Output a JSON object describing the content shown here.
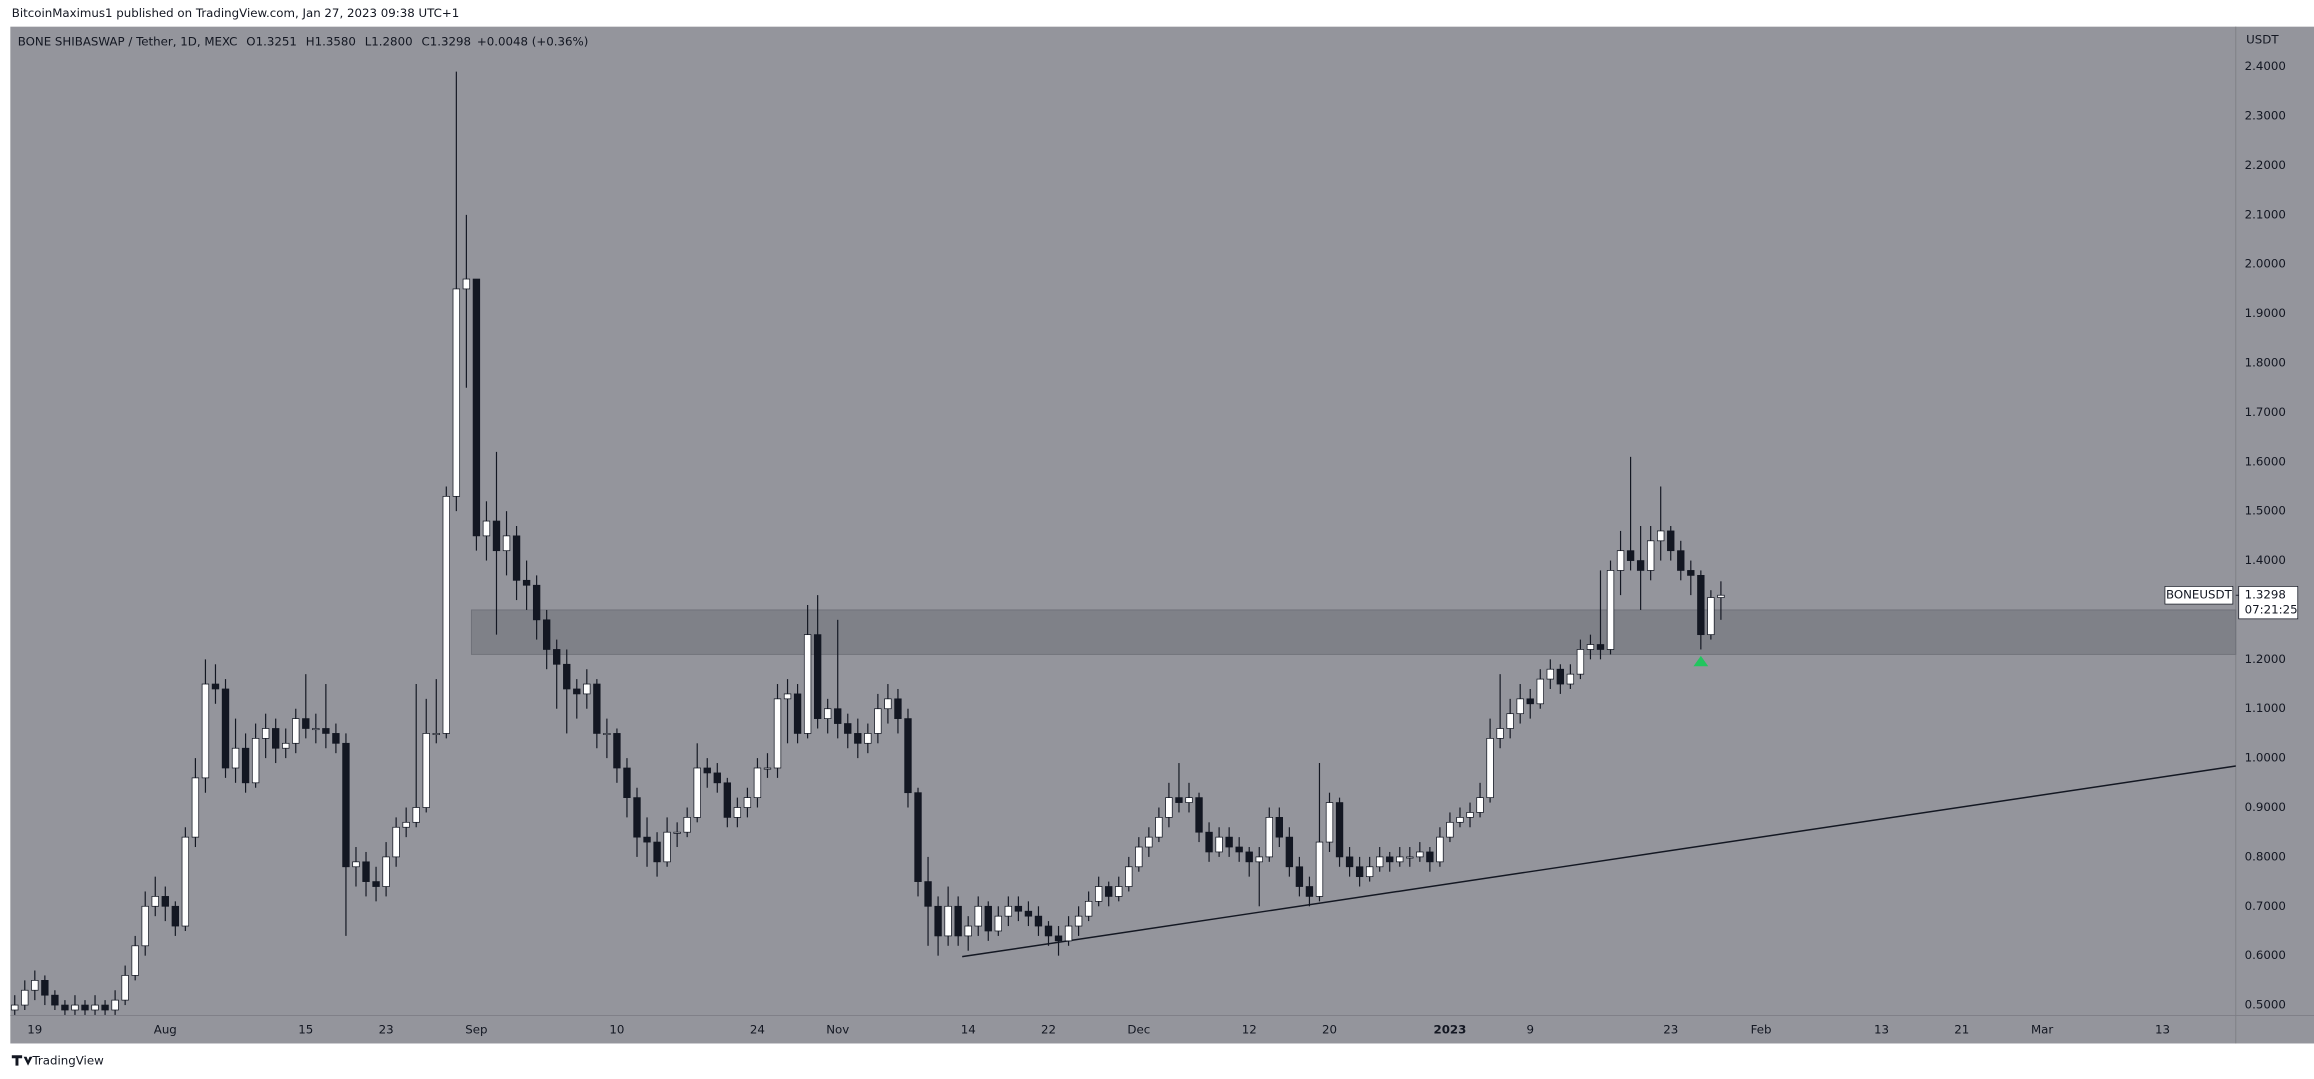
{
  "chart_data": {
    "type": "candlestick",
    "publisher": "BitcoinMaximus1 published on TradingView.com, Jan 27, 2023 09:38 UTC+1",
    "symbol": "BONE SHIBASWAP / Tether, 1D, MEXC",
    "ohlc_legend": [
      {
        "key": "O",
        "value": "1.3251"
      },
      {
        "key": "H",
        "value": "1.3580"
      },
      {
        "key": "L",
        "value": "1.2800"
      },
      {
        "key": "C",
        "value": "1.3298"
      }
    ],
    "change": "+0.0048 (+0.36%)",
    "currency": "USDT",
    "brand": "TradingView",
    "price_tag": {
      "symbol": "BONEUSDT",
      "price": "1.3298",
      "countdown": "07:21:25"
    },
    "up_color": "#ffffff",
    "down_color": "#131722",
    "ohlc": [
      [
        0.49,
        0.52,
        0.48,
        0.5
      ],
      [
        0.5,
        0.55,
        0.49,
        0.53
      ],
      [
        0.53,
        0.57,
        0.51,
        0.55
      ],
      [
        0.55,
        0.56,
        0.5,
        0.52
      ],
      [
        0.52,
        0.53,
        0.49,
        0.5
      ],
      [
        0.5,
        0.51,
        0.48,
        0.49
      ],
      [
        0.49,
        0.52,
        0.48,
        0.5
      ],
      [
        0.5,
        0.51,
        0.48,
        0.49
      ],
      [
        0.49,
        0.52,
        0.48,
        0.5
      ],
      [
        0.5,
        0.51,
        0.48,
        0.49
      ],
      [
        0.49,
        0.53,
        0.48,
        0.51
      ],
      [
        0.51,
        0.58,
        0.5,
        0.56
      ],
      [
        0.56,
        0.64,
        0.55,
        0.62
      ],
      [
        0.62,
        0.73,
        0.6,
        0.7
      ],
      [
        0.7,
        0.76,
        0.68,
        0.72
      ],
      [
        0.72,
        0.74,
        0.67,
        0.7
      ],
      [
        0.7,
        0.71,
        0.64,
        0.66
      ],
      [
        0.66,
        0.86,
        0.65,
        0.84
      ],
      [
        0.84,
        1.0,
        0.82,
        0.96
      ],
      [
        0.96,
        1.2,
        0.93,
        1.15
      ],
      [
        1.15,
        1.19,
        1.11,
        1.14
      ],
      [
        1.14,
        1.16,
        0.96,
        0.98
      ],
      [
        0.98,
        1.08,
        0.95,
        1.02
      ],
      [
        1.02,
        1.05,
        0.93,
        0.95
      ],
      [
        0.95,
        1.07,
        0.94,
        1.04
      ],
      [
        1.04,
        1.09,
        1.0,
        1.06
      ],
      [
        1.06,
        1.08,
        0.99,
        1.02
      ],
      [
        1.02,
        1.06,
        1.0,
        1.03
      ],
      [
        1.03,
        1.1,
        1.01,
        1.08
      ],
      [
        1.08,
        1.17,
        1.04,
        1.06
      ],
      [
        1.06,
        1.09,
        1.03,
        1.06
      ],
      [
        1.06,
        1.15,
        1.02,
        1.05
      ],
      [
        1.05,
        1.07,
        1.01,
        1.03
      ],
      [
        1.03,
        1.05,
        0.64,
        0.78
      ],
      [
        0.78,
        0.82,
        0.74,
        0.79
      ],
      [
        0.79,
        0.81,
        0.72,
        0.75
      ],
      [
        0.75,
        0.78,
        0.71,
        0.74
      ],
      [
        0.74,
        0.83,
        0.72,
        0.8
      ],
      [
        0.8,
        0.88,
        0.78,
        0.86
      ],
      [
        0.86,
        0.9,
        0.84,
        0.87
      ],
      [
        0.87,
        1.15,
        0.86,
        0.9
      ],
      [
        0.9,
        1.12,
        0.89,
        1.05
      ],
      [
        1.05,
        1.16,
        1.03,
        1.05
      ],
      [
        1.05,
        1.55,
        1.04,
        1.53
      ],
      [
        1.53,
        2.39,
        1.5,
        1.95
      ],
      [
        1.95,
        2.1,
        1.75,
        1.97
      ],
      [
        1.97,
        1.97,
        1.42,
        1.45
      ],
      [
        1.45,
        1.52,
        1.4,
        1.48
      ],
      [
        1.48,
        1.62,
        1.25,
        1.42
      ],
      [
        1.42,
        1.5,
        1.37,
        1.45
      ],
      [
        1.45,
        1.47,
        1.32,
        1.36
      ],
      [
        1.36,
        1.4,
        1.3,
        1.35
      ],
      [
        1.35,
        1.37,
        1.24,
        1.28
      ],
      [
        1.28,
        1.3,
        1.18,
        1.22
      ],
      [
        1.22,
        1.24,
        1.1,
        1.19
      ],
      [
        1.19,
        1.22,
        1.05,
        1.14
      ],
      [
        1.14,
        1.16,
        1.08,
        1.13
      ],
      [
        1.13,
        1.18,
        1.1,
        1.15
      ],
      [
        1.15,
        1.16,
        1.02,
        1.05
      ],
      [
        1.05,
        1.08,
        1.0,
        1.05
      ],
      [
        1.05,
        1.06,
        0.95,
        0.98
      ],
      [
        0.98,
        1.0,
        0.88,
        0.92
      ],
      [
        0.92,
        0.94,
        0.8,
        0.84
      ],
      [
        0.84,
        0.88,
        0.78,
        0.83
      ],
      [
        0.83,
        0.85,
        0.76,
        0.79
      ],
      [
        0.79,
        0.88,
        0.78,
        0.85
      ],
      [
        0.85,
        0.87,
        0.82,
        0.85
      ],
      [
        0.85,
        0.9,
        0.84,
        0.88
      ],
      [
        0.88,
        1.03,
        0.87,
        0.98
      ],
      [
        0.98,
        1.0,
        0.94,
        0.97
      ],
      [
        0.97,
        0.99,
        0.93,
        0.95
      ],
      [
        0.95,
        0.96,
        0.86,
        0.88
      ],
      [
        0.88,
        0.92,
        0.86,
        0.9
      ],
      [
        0.9,
        0.94,
        0.88,
        0.92
      ],
      [
        0.92,
        1.0,
        0.9,
        0.98
      ],
      [
        0.98,
        1.01,
        0.96,
        0.98
      ],
      [
        0.98,
        1.15,
        0.96,
        1.12
      ],
      [
        1.12,
        1.16,
        1.03,
        1.13
      ],
      [
        1.13,
        1.15,
        1.03,
        1.05
      ],
      [
        1.05,
        1.31,
        1.04,
        1.25
      ],
      [
        1.25,
        1.33,
        1.06,
        1.08
      ],
      [
        1.08,
        1.12,
        1.05,
        1.1
      ],
      [
        1.1,
        1.28,
        1.04,
        1.07
      ],
      [
        1.07,
        1.09,
        1.02,
        1.05
      ],
      [
        1.05,
        1.08,
        1.0,
        1.03
      ],
      [
        1.03,
        1.07,
        1.01,
        1.05
      ],
      [
        1.05,
        1.13,
        1.03,
        1.1
      ],
      [
        1.1,
        1.15,
        1.07,
        1.12
      ],
      [
        1.12,
        1.14,
        1.05,
        1.08
      ],
      [
        1.08,
        1.1,
        0.9,
        0.93
      ],
      [
        0.93,
        0.94,
        0.72,
        0.75
      ],
      [
        0.75,
        0.8,
        0.62,
        0.7
      ],
      [
        0.7,
        0.72,
        0.6,
        0.64
      ],
      [
        0.64,
        0.74,
        0.62,
        0.7
      ],
      [
        0.7,
        0.72,
        0.62,
        0.64
      ],
      [
        0.64,
        0.68,
        0.61,
        0.66
      ],
      [
        0.66,
        0.72,
        0.64,
        0.7
      ],
      [
        0.7,
        0.71,
        0.63,
        0.65
      ],
      [
        0.65,
        0.7,
        0.64,
        0.68
      ],
      [
        0.68,
        0.72,
        0.66,
        0.7
      ],
      [
        0.7,
        0.72,
        0.67,
        0.69
      ],
      [
        0.69,
        0.71,
        0.66,
        0.68
      ],
      [
        0.68,
        0.7,
        0.64,
        0.66
      ],
      [
        0.66,
        0.67,
        0.62,
        0.64
      ],
      [
        0.64,
        0.66,
        0.6,
        0.63
      ],
      [
        0.63,
        0.68,
        0.62,
        0.66
      ],
      [
        0.66,
        0.7,
        0.64,
        0.68
      ],
      [
        0.68,
        0.73,
        0.67,
        0.71
      ],
      [
        0.71,
        0.76,
        0.7,
        0.74
      ],
      [
        0.74,
        0.75,
        0.7,
        0.72
      ],
      [
        0.72,
        0.76,
        0.71,
        0.74
      ],
      [
        0.74,
        0.8,
        0.73,
        0.78
      ],
      [
        0.78,
        0.84,
        0.77,
        0.82
      ],
      [
        0.82,
        0.86,
        0.8,
        0.84
      ],
      [
        0.84,
        0.9,
        0.83,
        0.88
      ],
      [
        0.88,
        0.95,
        0.86,
        0.92
      ],
      [
        0.92,
        0.99,
        0.89,
        0.91
      ],
      [
        0.91,
        0.95,
        0.89,
        0.92
      ],
      [
        0.92,
        0.93,
        0.83,
        0.85
      ],
      [
        0.85,
        0.87,
        0.79,
        0.81
      ],
      [
        0.81,
        0.86,
        0.8,
        0.84
      ],
      [
        0.84,
        0.86,
        0.8,
        0.82
      ],
      [
        0.82,
        0.84,
        0.79,
        0.81
      ],
      [
        0.81,
        0.82,
        0.76,
        0.79
      ],
      [
        0.79,
        0.82,
        0.7,
        0.8
      ],
      [
        0.8,
        0.9,
        0.79,
        0.88
      ],
      [
        0.88,
        0.9,
        0.82,
        0.84
      ],
      [
        0.84,
        0.86,
        0.76,
        0.78
      ],
      [
        0.78,
        0.8,
        0.72,
        0.74
      ],
      [
        0.74,
        0.76,
        0.7,
        0.72
      ],
      [
        0.72,
        0.99,
        0.71,
        0.83
      ],
      [
        0.83,
        0.93,
        0.81,
        0.91
      ],
      [
        0.91,
        0.92,
        0.78,
        0.8
      ],
      [
        0.8,
        0.82,
        0.76,
        0.78
      ],
      [
        0.78,
        0.8,
        0.74,
        0.76
      ],
      [
        0.76,
        0.8,
        0.75,
        0.78
      ],
      [
        0.78,
        0.82,
        0.77,
        0.8
      ],
      [
        0.8,
        0.81,
        0.77,
        0.79
      ],
      [
        0.79,
        0.82,
        0.78,
        0.8
      ],
      [
        0.8,
        0.82,
        0.78,
        0.8
      ],
      [
        0.8,
        0.83,
        0.79,
        0.81
      ],
      [
        0.81,
        0.82,
        0.77,
        0.79
      ],
      [
        0.79,
        0.86,
        0.78,
        0.84
      ],
      [
        0.84,
        0.89,
        0.83,
        0.87
      ],
      [
        0.87,
        0.9,
        0.86,
        0.88
      ],
      [
        0.88,
        0.91,
        0.86,
        0.89
      ],
      [
        0.89,
        0.95,
        0.88,
        0.92
      ],
      [
        0.92,
        1.08,
        0.91,
        1.04
      ],
      [
        1.04,
        1.17,
        1.02,
        1.06
      ],
      [
        1.06,
        1.12,
        1.04,
        1.09
      ],
      [
        1.09,
        1.15,
        1.07,
        1.12
      ],
      [
        1.12,
        1.14,
        1.08,
        1.11
      ],
      [
        1.11,
        1.18,
        1.1,
        1.16
      ],
      [
        1.16,
        1.2,
        1.14,
        1.18
      ],
      [
        1.18,
        1.19,
        1.13,
        1.15
      ],
      [
        1.15,
        1.19,
        1.14,
        1.17
      ],
      [
        1.17,
        1.24,
        1.16,
        1.22
      ],
      [
        1.22,
        1.25,
        1.2,
        1.23
      ],
      [
        1.23,
        1.38,
        1.2,
        1.22
      ],
      [
        1.22,
        1.4,
        1.21,
        1.38
      ],
      [
        1.38,
        1.46,
        1.33,
        1.42
      ],
      [
        1.42,
        1.61,
        1.38,
        1.4
      ],
      [
        1.4,
        1.47,
        1.3,
        1.38
      ],
      [
        1.38,
        1.47,
        1.36,
        1.44
      ],
      [
        1.44,
        1.55,
        1.4,
        1.46
      ],
      [
        1.46,
        1.47,
        1.4,
        1.42
      ],
      [
        1.42,
        1.44,
        1.36,
        1.38
      ],
      [
        1.38,
        1.4,
        1.33,
        1.37
      ],
      [
        1.37,
        1.38,
        1.22,
        1.25
      ],
      [
        1.25,
        1.34,
        1.24,
        1.3251
      ],
      [
        1.3251,
        1.358,
        1.28,
        1.3298
      ]
    ],
    "zone": [
      1.21,
      1.3
    ],
    "zone_start": 45.5,
    "trendline": {
      "x": [
        94.4,
        221.3
      ],
      "y": [
        0.598,
        0.984
      ]
    },
    "marker": {
      "x": 168,
      "y": 1.195,
      "color": "#22c55e"
    },
    "xlim": [
      -0.44,
      221.3
    ],
    "xticks": [
      {
        "value": 2,
        "label": "19"
      },
      {
        "value": 15,
        "label": "Aug"
      },
      {
        "value": 29,
        "label": "15"
      },
      {
        "value": 37,
        "label": "23"
      },
      {
        "value": 46,
        "label": "Sep"
      },
      {
        "value": 60,
        "label": "10"
      },
      {
        "value": 74,
        "label": "24"
      },
      {
        "value": 82,
        "label": "Nov"
      },
      {
        "value": 95,
        "label": "14"
      },
      {
        "value": 103,
        "label": "22"
      },
      {
        "value": 112,
        "label": "Dec"
      },
      {
        "value": 123,
        "label": "12"
      },
      {
        "value": 131,
        "label": "20"
      },
      {
        "value": 143,
        "label": "2023"
      },
      {
        "value": 151,
        "label": "9"
      },
      {
        "value": 165,
        "label": "23"
      },
      {
        "value": 174,
        "label": "Feb"
      },
      {
        "value": 186,
        "label": "13"
      },
      {
        "value": 194,
        "label": "21"
      },
      {
        "value": 202,
        "label": "Mar"
      },
      {
        "value": 214,
        "label": "13"
      }
    ],
    "ylim": [
      0.479,
      2.481
    ],
    "yticks": [
      {
        "value": 0.5,
        "label": "0.5000"
      },
      {
        "value": 0.6,
        "label": "0.6000"
      },
      {
        "value": 0.7,
        "label": "0.7000"
      },
      {
        "value": 0.8,
        "label": "0.8000"
      },
      {
        "value": 0.9,
        "label": "0.9000"
      },
      {
        "value": 1.0,
        "label": "1.0000"
      },
      {
        "value": 1.1,
        "label": "1.1000"
      },
      {
        "value": 1.2,
        "label": "1.2000"
      },
      {
        "value": 1.3,
        "label": "1.3000"
      },
      {
        "value": 1.4,
        "label": "1.4000"
      },
      {
        "value": 1.5,
        "label": "1.5000"
      },
      {
        "value": 1.6,
        "label": "1.6000"
      },
      {
        "value": 1.7,
        "label": "1.7000"
      },
      {
        "value": 1.8,
        "label": "1.8000"
      },
      {
        "value": 1.9,
        "label": "1.9000"
      },
      {
        "value": 2.0,
        "label": "2.0000"
      },
      {
        "value": 2.1,
        "label": "2.1000"
      },
      {
        "value": 2.2,
        "label": "2.2000"
      },
      {
        "value": 2.3,
        "label": "2.3000"
      },
      {
        "value": 2.4,
        "label": "2.4000"
      }
    ],
    "grid": false
  }
}
